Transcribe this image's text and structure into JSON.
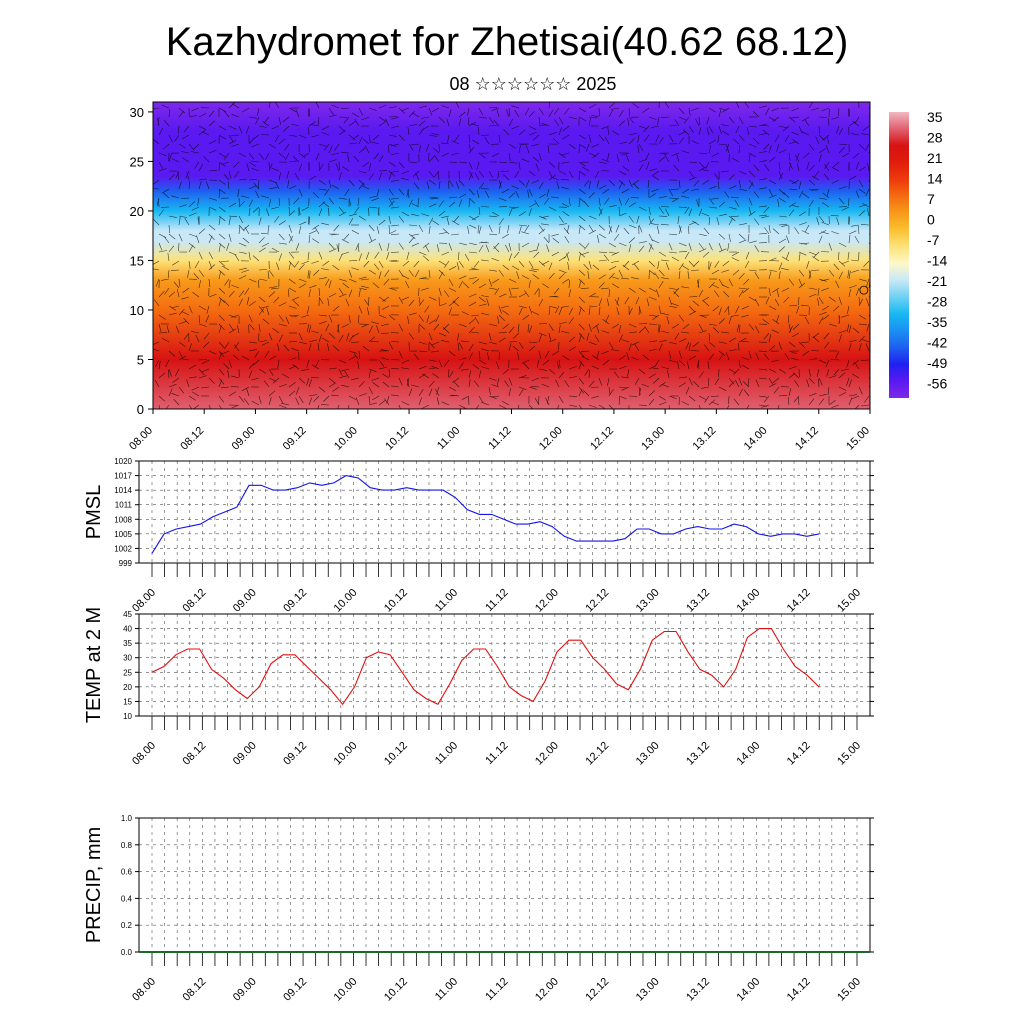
{
  "header": {
    "title": "Kazhydromet for Zhetisai(40.62 68.12)",
    "subtitle": "08 ☆☆☆☆☆☆ 2025"
  },
  "colors": {
    "pmsl_line": "#1414e6",
    "temp_line": "#e01010",
    "grid": "#555555"
  },
  "chart_data": [
    {
      "type": "heatmap",
      "name": "cross-section",
      "x_ticks": [
        "08.00",
        "08.12",
        "09.00",
        "09.12",
        "10.00",
        "10.12",
        "11.00",
        "11.12",
        "12.00",
        "12.12",
        "13.00",
        "13.12",
        "14.00",
        "14.12",
        "15.00"
      ],
      "y_ticks": [
        0,
        5,
        10,
        15,
        20,
        25,
        30
      ],
      "ylim": [
        0,
        31
      ],
      "colorbar_labels": [
        "35",
        "28",
        "21",
        "14",
        "7",
        "0",
        "-7",
        "-14",
        "-21",
        "-28",
        "-35",
        "-42",
        "-49",
        "-56"
      ],
      "colorbar_range": [
        -63,
        42
      ],
      "colorscale": [
        "#7e28ea",
        "#5a19f0",
        "#2020f0",
        "#1e5ff0",
        "#1a90f2",
        "#18b8f2",
        "#6ed2f2",
        "#c8e8f8",
        "#fff8c8",
        "#fde27a",
        "#fbc030",
        "#f89a1a",
        "#f46c10",
        "#ee3a0c",
        "#e01c0c",
        "#d71212",
        "#e06070",
        "#f2b8c0"
      ],
      "temperature_profile": {
        "heights": [
          0,
          5,
          10,
          13,
          15,
          17,
          18,
          20,
          22,
          23.5,
          25,
          26.5,
          28,
          31
        ],
        "values": [
          33,
          25,
          11,
          2,
          -8,
          -17,
          -22,
          -33,
          -44,
          -52,
          -57,
          -54,
          -56,
          -58
        ]
      },
      "note_marker": {
        "x": 13.88,
        "y": 12
      }
    },
    {
      "type": "line",
      "name": "pmsl",
      "ylabel": "PMSL",
      "ylim": [
        999,
        1020
      ],
      "y_ticks": [
        999,
        1002,
        1005,
        1008,
        1011,
        1014,
        1017,
        1020
      ],
      "x_ticks": [
        "08.00",
        "08.12",
        "09.00",
        "09.12",
        "10.00",
        "10.12",
        "11.00",
        "11.12",
        "12.00",
        "12.12",
        "13.00",
        "13.12",
        "14.00",
        "14.12",
        "15.00"
      ],
      "series": [
        {
          "values": [
            1001,
            1005,
            1006,
            1006.5,
            1007,
            1008.5,
            1009.5,
            1010.5,
            1015,
            1015,
            1014,
            1014,
            1014.5,
            1015.5,
            1015,
            1015.5,
            1017,
            1016.5,
            1014.5,
            1014,
            1014,
            1014.5,
            1014,
            1014,
            1014,
            1012.5,
            1010,
            1009,
            1009,
            1008,
            1007,
            1007,
            1007.5,
            1006.5,
            1004.5,
            1003.5,
            1003.5,
            1003.5,
            1003.5,
            1004,
            1006,
            1006,
            1005,
            1005,
            1006,
            1006.5,
            1006,
            1006,
            1007,
            1006.5,
            1005,
            1004.5,
            1005,
            1005,
            1004.5,
            1005
          ]
        }
      ]
    },
    {
      "type": "line",
      "name": "temp2m",
      "ylabel": "TEMP at 2 M",
      "ylim": [
        10,
        45
      ],
      "y_ticks": [
        10,
        15,
        20,
        25,
        30,
        35,
        40,
        45
      ],
      "x_ticks": [
        "08.00",
        "08.12",
        "09.00",
        "09.12",
        "10.00",
        "10.12",
        "11.00",
        "11.12",
        "12.00",
        "12.12",
        "13.00",
        "13.12",
        "14.00",
        "14.12",
        "15.00"
      ],
      "series": [
        {
          "values": [
            25,
            27,
            31,
            33,
            33,
            26,
            23,
            19,
            16,
            20,
            28,
            31,
            31,
            27,
            23,
            19,
            14,
            20,
            30,
            32,
            31,
            25,
            19,
            16,
            14,
            21,
            29,
            33,
            33,
            27,
            20,
            17,
            15,
            22,
            32,
            36,
            36,
            30,
            26,
            21,
            19,
            26,
            36,
            39,
            39,
            32,
            26,
            24,
            20,
            26,
            37,
            40,
            40,
            33,
            27,
            24,
            20
          ]
        }
      ]
    },
    {
      "type": "bar",
      "name": "precip",
      "ylabel": "PRECIP, mm",
      "ylim": [
        0,
        1
      ],
      "y_ticks": [
        "0.0",
        "0.2",
        "0.4",
        "0.6",
        "0.8",
        "1.0"
      ],
      "x_ticks": [
        "08.00",
        "08.12",
        "09.00",
        "09.12",
        "10.00",
        "10.12",
        "11.00",
        "11.12",
        "12.00",
        "12.12",
        "13.00",
        "13.12",
        "14.00",
        "14.12",
        "15.00"
      ],
      "values": []
    }
  ]
}
